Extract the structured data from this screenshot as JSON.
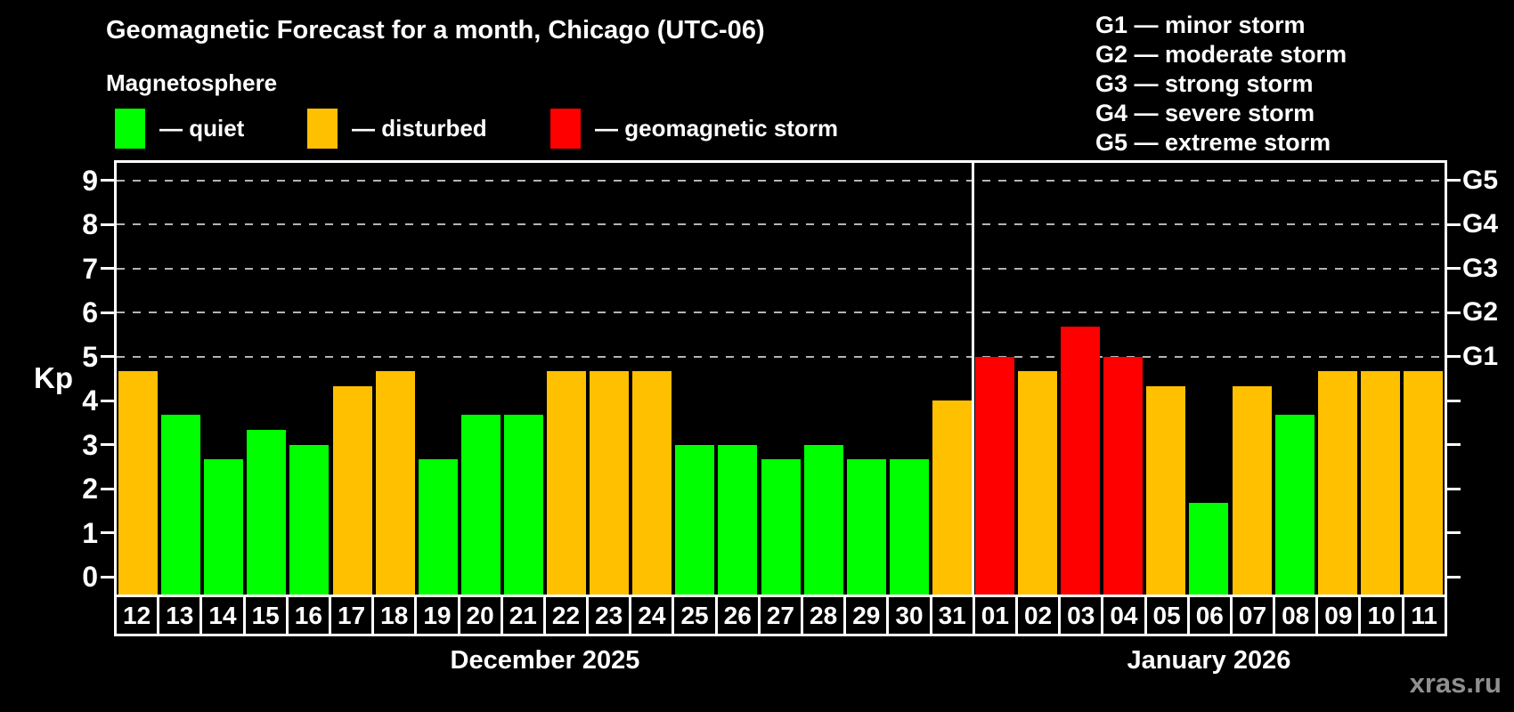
{
  "header": {
    "title": "Geomagnetic Forecast for a month, Chicago (UTC-06)",
    "subtitle": "Magnetosphere"
  },
  "legend": {
    "items": [
      {
        "level": "quiet",
        "label": "— quiet",
        "color": "#00ff00"
      },
      {
        "level": "disturbed",
        "label": "— disturbed",
        "color": "#ffc000"
      },
      {
        "level": "storm",
        "label": "— geomagnetic storm",
        "color": "#ff0000"
      }
    ]
  },
  "storm_scale": {
    "items": [
      "G1 — minor storm",
      "G2 — moderate storm",
      "G3 — strong storm",
      "G4 — severe storm",
      "G5 — extreme storm"
    ]
  },
  "watermark": "xras.ru",
  "chart_data": {
    "type": "bar",
    "title": "Geomagnetic Forecast for a month, Chicago (UTC-06)",
    "subtitle": "Magnetosphere",
    "ylabel": "Kp",
    "ylim": [
      -0.4,
      9.4
    ],
    "y_ticks": [
      0,
      1,
      2,
      3,
      4,
      5,
      6,
      7,
      8,
      9
    ],
    "grid": "dashed horizontal lines at Kp 5,6,7,8,9",
    "right_axis_labels": [
      {
        "kp": 5,
        "label": "G1"
      },
      {
        "kp": 6,
        "label": "G2"
      },
      {
        "kp": 7,
        "label": "G3"
      },
      {
        "kp": 8,
        "label": "G4"
      },
      {
        "kp": 9,
        "label": "G5"
      }
    ],
    "level_colors": {
      "quiet": "#00ff00",
      "disturbed": "#ffc000",
      "storm": "#ff0000"
    },
    "months": [
      {
        "label": "December 2025",
        "days": 20
      },
      {
        "label": "January 2026",
        "days": 11
      }
    ],
    "bars": [
      {
        "day": "12",
        "kp": 4.67,
        "level": "disturbed"
      },
      {
        "day": "13",
        "kp": 3.67,
        "level": "quiet"
      },
      {
        "day": "14",
        "kp": 2.67,
        "level": "quiet"
      },
      {
        "day": "15",
        "kp": 3.33,
        "level": "quiet"
      },
      {
        "day": "16",
        "kp": 3.0,
        "level": "quiet"
      },
      {
        "day": "17",
        "kp": 4.33,
        "level": "disturbed"
      },
      {
        "day": "18",
        "kp": 4.67,
        "level": "disturbed"
      },
      {
        "day": "19",
        "kp": 2.67,
        "level": "quiet"
      },
      {
        "day": "20",
        "kp": 3.67,
        "level": "quiet"
      },
      {
        "day": "21",
        "kp": 3.67,
        "level": "quiet"
      },
      {
        "day": "22",
        "kp": 4.67,
        "level": "disturbed"
      },
      {
        "day": "23",
        "kp": 4.67,
        "level": "disturbed"
      },
      {
        "day": "24",
        "kp": 4.67,
        "level": "disturbed"
      },
      {
        "day": "25",
        "kp": 3.0,
        "level": "quiet"
      },
      {
        "day": "26",
        "kp": 3.0,
        "level": "quiet"
      },
      {
        "day": "27",
        "kp": 2.67,
        "level": "quiet"
      },
      {
        "day": "28",
        "kp": 3.0,
        "level": "quiet"
      },
      {
        "day": "29",
        "kp": 2.67,
        "level": "quiet"
      },
      {
        "day": "30",
        "kp": 2.67,
        "level": "quiet"
      },
      {
        "day": "31",
        "kp": 4.0,
        "level": "disturbed"
      },
      {
        "day": "01",
        "kp": 5.0,
        "level": "storm"
      },
      {
        "day": "02",
        "kp": 4.67,
        "level": "disturbed"
      },
      {
        "day": "03",
        "kp": 5.67,
        "level": "storm"
      },
      {
        "day": "04",
        "kp": 5.0,
        "level": "storm"
      },
      {
        "day": "05",
        "kp": 4.33,
        "level": "disturbed"
      },
      {
        "day": "06",
        "kp": 1.67,
        "level": "quiet"
      },
      {
        "day": "07",
        "kp": 4.33,
        "level": "disturbed"
      },
      {
        "day": "08",
        "kp": 3.67,
        "level": "quiet"
      },
      {
        "day": "09",
        "kp": 4.67,
        "level": "disturbed"
      },
      {
        "day": "10",
        "kp": 4.67,
        "level": "disturbed"
      },
      {
        "day": "11",
        "kp": 4.67,
        "level": "disturbed"
      }
    ]
  }
}
